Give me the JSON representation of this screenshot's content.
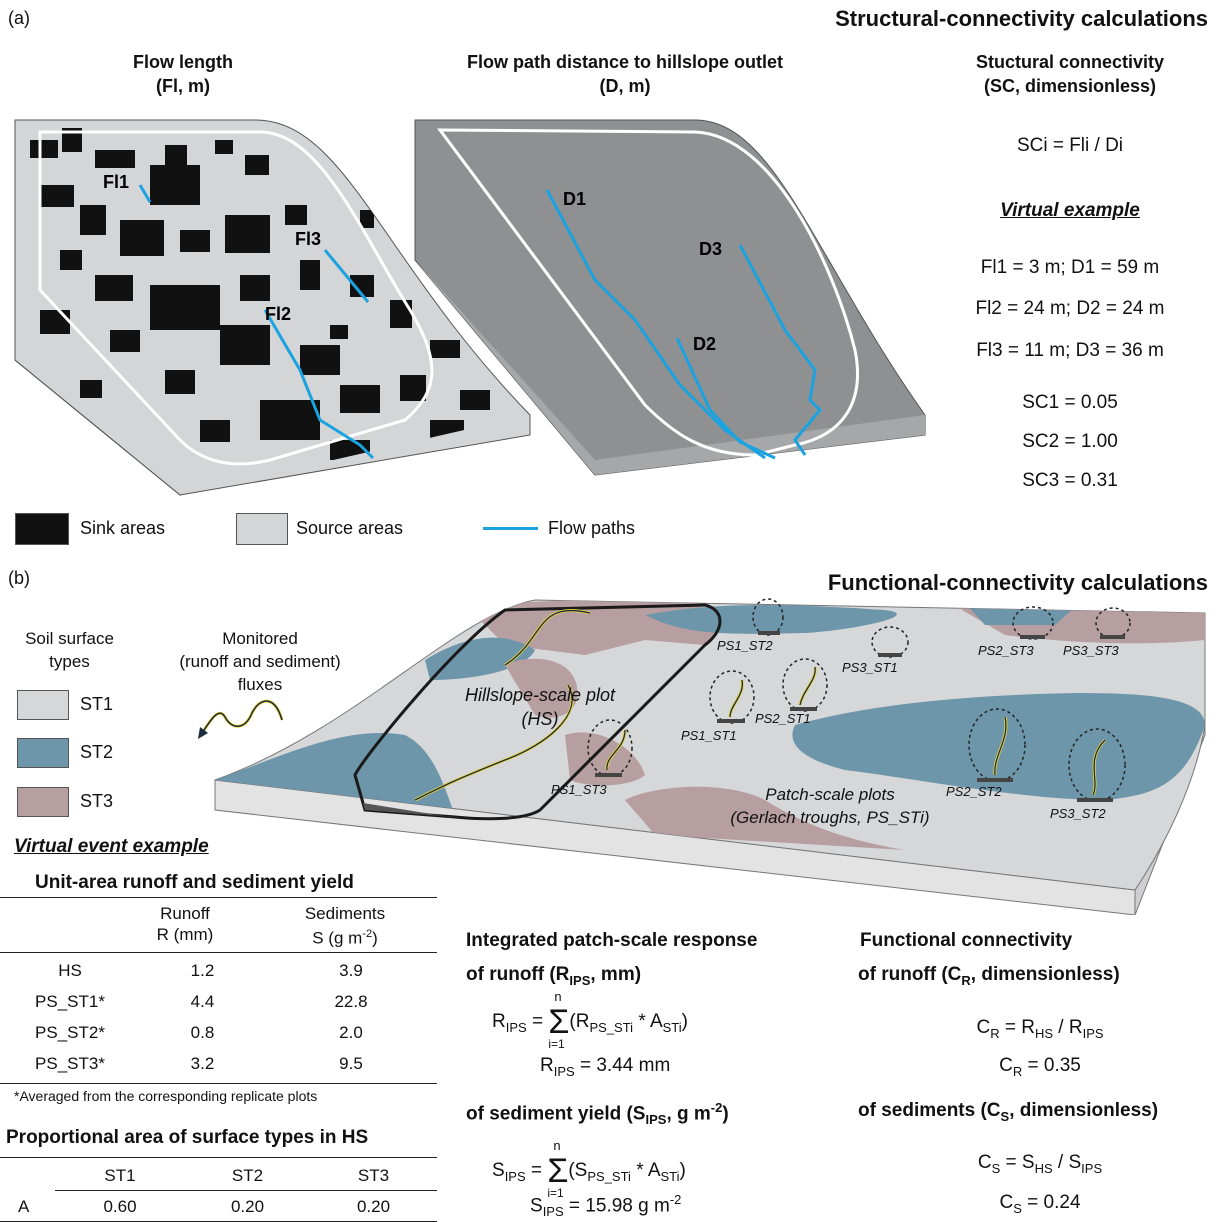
{
  "panel_a": {
    "label": "(a)",
    "section_title": "Structural-connectivity calculations",
    "col1_title": [
      "Flow length",
      "(Fl, m)"
    ],
    "col2_title": [
      "Flow path distance to hillslope outlet",
      "(D, m)"
    ],
    "col3_title": [
      "Stuctural connectivity",
      "(SC, dimensionless)"
    ],
    "sc_formula": "SCi = Fli / Di",
    "virtual_example": "Virtual example",
    "fl_values": [
      {
        "fl": "Fl1 = 3 m; D1 = 59 m"
      },
      {
        "fl": "Fl2 = 24 m; D2 = 24 m"
      },
      {
        "fl": "Fl3 = 11 m; D3 = 36 m"
      }
    ],
    "sc_values": [
      "SC1 = 0.05",
      "SC2 = 1.00",
      "SC3 = 0.31"
    ],
    "path_labels_fl": [
      "Fl1",
      "Fl2",
      "Fl3"
    ],
    "path_labels_d": [
      "D1",
      "D2",
      "D3"
    ],
    "legend": {
      "sink": "Sink areas",
      "source": "Source areas",
      "flow": "Flow paths"
    },
    "colors": {
      "sink": "#111111",
      "source": "#d4d5d7",
      "flow": "#1aa3e0",
      "surface_d": "#8f9092"
    }
  },
  "panel_b": {
    "label": "(b)",
    "section_title": "Functional-connectivity calculations",
    "soil_types_title": [
      "Soil surface",
      "types"
    ],
    "soil_types": [
      {
        "name": "ST1",
        "color": "#d6d7d9"
      },
      {
        "name": "ST2",
        "color": "#6e96aa"
      },
      {
        "name": "ST3",
        "color": "#b79ea0"
      }
    ],
    "monitored": [
      "Monitored",
      "(runoff and sediment)",
      "fluxes"
    ],
    "hillslope_plot": [
      "Hillslope-scale plot",
      "(HS)"
    ],
    "patch_plots": [
      "Patch-scale plots",
      "(Gerlach troughs, PS_STi)"
    ],
    "plot_labels": [
      "PS1_ST2",
      "PS3_ST1",
      "PS2_ST3",
      "PS3_ST3",
      "PS1_ST1",
      "PS2_ST1",
      "PS1_ST3",
      "PS2_ST2",
      "PS3_ST2"
    ],
    "virtual_event": "Virtual event example",
    "table1": {
      "title": "Unit-area runoff and sediment yield",
      "headers": [
        [
          "Runoff",
          "R (mm)"
        ],
        [
          "Sediments",
          "S (g m-2)"
        ]
      ],
      "rows": [
        {
          "name": "HS",
          "r": "1.2",
          "s": "3.9"
        },
        {
          "name": "PS_ST1*",
          "r": "4.4",
          "s": "22.8"
        },
        {
          "name": "PS_ST2*",
          "r": "0.8",
          "s": "2.0"
        },
        {
          "name": "PS_ST3*",
          "r": "3.2",
          "s": "9.5"
        }
      ],
      "footnote": "*Averaged from the corresponding replicate plots"
    },
    "table2": {
      "title": "Proportional area of surface types in HS",
      "headers": [
        "ST1",
        "ST2",
        "ST3"
      ],
      "row_label": "A",
      "values": [
        "0.60",
        "0.20",
        "0.20"
      ]
    },
    "integrated": {
      "title": "Integrated patch-scale response",
      "runoff_sub": "of runoff (RIPS, mm)",
      "runoff_result": "RIPS = 3.44 mm",
      "sed_sub": "of sediment yield (SIPS, g m-2)",
      "sed_result": "SIPS = 15.98 g m-2"
    },
    "functional": {
      "title": "Functional connectivity",
      "runoff_sub": "of runoff (CR, dimensionless)",
      "runoff_formula": "CR = RHS / RIPS",
      "runoff_result": "CR = 0.35",
      "sed_sub": "of sediments (CS, dimensionless)",
      "sed_formula": "CS = SHS / SIPS",
      "sed_result": "CS = 0.24"
    }
  }
}
